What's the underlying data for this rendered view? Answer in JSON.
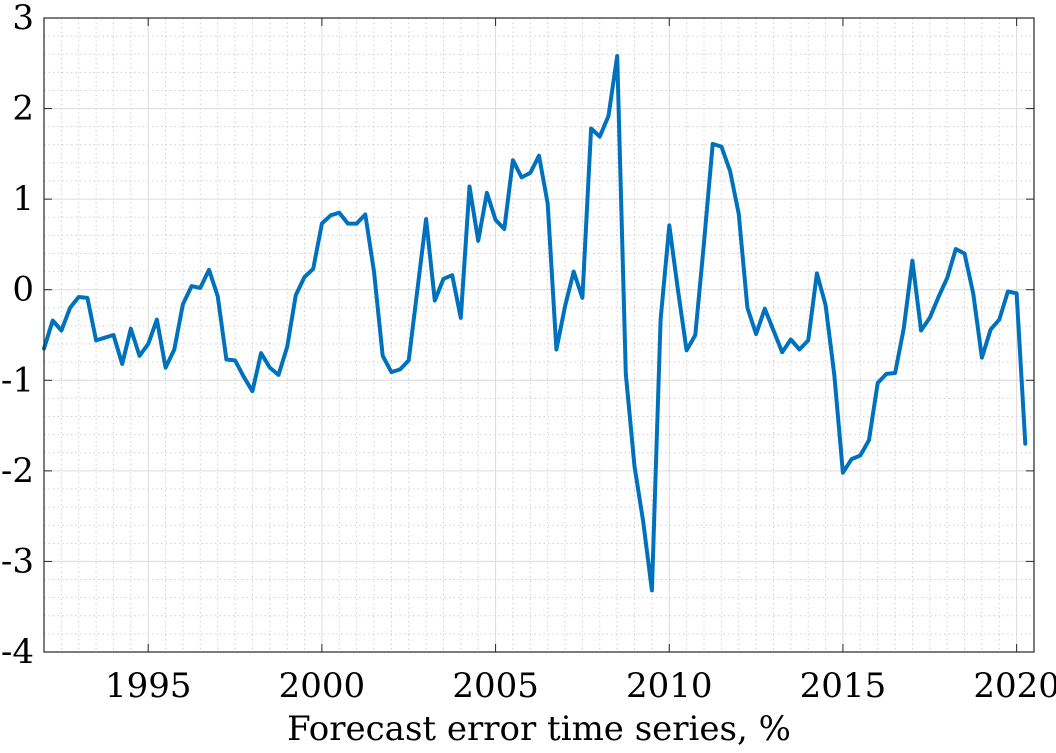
{
  "chart_data": {
    "type": "line",
    "title": "",
    "xlabel": "Forecast error time series, %",
    "ylabel": "",
    "xlim": [
      1992.0,
      2020.5
    ],
    "ylim": [
      -4,
      3
    ],
    "xticks": [
      1995,
      2000,
      2005,
      2010,
      2015,
      2020
    ],
    "xtick_labels": [
      "1995",
      "2000",
      "2005",
      "2010",
      "2015",
      "2020"
    ],
    "yticks": [
      -4,
      -3,
      -2,
      -1,
      0,
      1,
      2,
      3
    ],
    "ytick_labels": [
      "-4",
      "-3",
      "-2",
      "-1",
      "0",
      "1",
      "2",
      "3"
    ],
    "grid": true,
    "minor_grid": true,
    "color": "#0072BD",
    "series": [
      {
        "x": [
          1992.0,
          1992.25,
          1992.5,
          1992.75,
          1993.0,
          1993.25,
          1993.5,
          1993.75,
          1994.0,
          1994.25,
          1994.5,
          1994.75,
          1995.0,
          1995.25,
          1995.5,
          1995.75,
          1996.0,
          1996.25,
          1996.5,
          1996.75,
          1997.0,
          1997.25,
          1997.5,
          1997.75,
          1998.0,
          1998.25,
          1998.5,
          1998.75,
          1999.0,
          1999.25,
          1999.5,
          1999.75,
          2000.0,
          2000.25,
          2000.5,
          2000.75,
          2001.0,
          2001.25,
          2001.5,
          2001.75,
          2002.0,
          2002.25,
          2002.5,
          2002.75,
          2003.0,
          2003.25,
          2003.5,
          2003.75,
          2004.0,
          2004.25,
          2004.5,
          2004.75,
          2005.0,
          2005.25,
          2005.5,
          2005.75,
          2006.0,
          2006.25,
          2006.5,
          2006.75,
          2007.0,
          2007.25,
          2007.5,
          2007.75,
          2008.0,
          2008.25,
          2008.5,
          2008.75,
          2009.0,
          2009.25,
          2009.5,
          2009.75,
          2010.0,
          2010.25,
          2010.5,
          2010.75,
          2011.0,
          2011.25,
          2011.5,
          2011.75,
          2012.0,
          2012.25,
          2012.5,
          2012.75,
          2013.0,
          2013.25,
          2013.5,
          2013.75,
          2014.0,
          2014.25,
          2014.5,
          2014.75,
          2015.0,
          2015.25,
          2015.5,
          2015.75,
          2016.0,
          2016.25,
          2016.5,
          2016.75,
          2017.0,
          2017.25,
          2017.5,
          2017.75,
          2018.0,
          2018.25,
          2018.5,
          2018.75,
          2019.0,
          2019.25,
          2019.5,
          2019.75,
          2020.0,
          2020.25
        ],
        "y": [
          -0.65,
          -0.34,
          -0.45,
          -0.2,
          -0.08,
          -0.09,
          -0.56,
          -0.53,
          -0.5,
          -0.82,
          -0.43,
          -0.73,
          -0.6,
          -0.33,
          -0.86,
          -0.66,
          -0.16,
          0.04,
          0.02,
          0.22,
          -0.07,
          -0.77,
          -0.78,
          -0.96,
          -1.12,
          -0.7,
          -0.86,
          -0.94,
          -0.63,
          -0.06,
          0.14,
          0.23,
          0.73,
          0.82,
          0.85,
          0.73,
          0.73,
          0.83,
          0.2,
          -0.73,
          -0.91,
          -0.88,
          -0.78,
          0.0,
          0.78,
          -0.12,
          0.12,
          0.16,
          -0.31,
          1.14,
          0.54,
          1.07,
          0.77,
          0.67,
          1.43,
          1.24,
          1.29,
          1.48,
          0.95,
          -0.66,
          -0.18,
          0.2,
          -0.09,
          1.78,
          1.69,
          1.92,
          2.58,
          -0.93,
          -1.95,
          -2.56,
          -3.32,
          -0.33,
          0.71,
          0.0,
          -0.67,
          -0.5,
          0.52,
          1.61,
          1.58,
          1.31,
          0.84,
          -0.2,
          -0.49,
          -0.21,
          -0.45,
          -0.69,
          -0.55,
          -0.66,
          -0.56,
          0.18,
          -0.17,
          -0.94,
          -2.02,
          -1.87,
          -1.83,
          -1.66,
          -1.03,
          -0.93,
          -0.92,
          -0.43,
          0.32,
          -0.45,
          -0.31,
          -0.08,
          0.13,
          0.45,
          0.4,
          -0.04,
          -0.75,
          -0.44,
          -0.33,
          -0.02,
          -0.04,
          -1.7
        ]
      }
    ]
  }
}
